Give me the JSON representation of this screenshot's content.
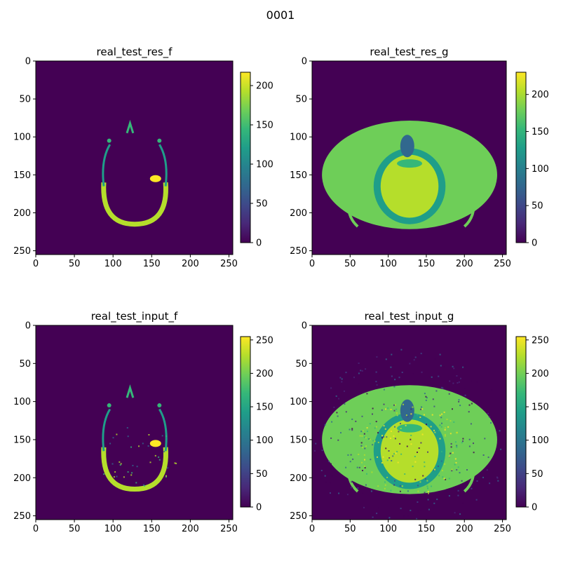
{
  "figure": {
    "title": "0001"
  },
  "colors": {
    "viridis": [
      "#440154",
      "#482878",
      "#3e4989",
      "#31688e",
      "#26828e",
      "#1f9e89",
      "#35b779",
      "#6ece58",
      "#b5de2b",
      "#fde725"
    ],
    "background": "#440154"
  },
  "chart_data": [
    {
      "type": "heatmap",
      "title": "real_test_res_f",
      "xlim": [
        0,
        255
      ],
      "ylim": [
        255,
        0
      ],
      "x_ticks": [
        0,
        50,
        100,
        150,
        200,
        250
      ],
      "y_ticks": [
        0,
        50,
        100,
        150,
        200,
        250
      ],
      "colorbar": {
        "range": [
          0,
          217
        ],
        "ticks": [
          0,
          50,
          100,
          150,
          200
        ]
      },
      "content": "bone-ring"
    },
    {
      "type": "heatmap",
      "title": "real_test_res_g",
      "xlim": [
        0,
        255
      ],
      "ylim": [
        255,
        0
      ],
      "x_ticks": [
        0,
        50,
        100,
        150,
        200,
        250
      ],
      "y_ticks": [
        0,
        50,
        100,
        150,
        200,
        250
      ],
      "colorbar": {
        "range": [
          0,
          230
        ],
        "ticks": [
          0,
          50,
          100,
          150,
          200
        ]
      },
      "content": "head-slice"
    },
    {
      "type": "heatmap",
      "title": "real_test_input_f",
      "xlim": [
        0,
        255
      ],
      "ylim": [
        255,
        0
      ],
      "x_ticks": [
        0,
        50,
        100,
        150,
        200,
        250
      ],
      "y_ticks": [
        0,
        50,
        100,
        150,
        200,
        250
      ],
      "colorbar": {
        "range": [
          0,
          255
        ],
        "ticks": [
          0,
          50,
          100,
          150,
          200,
          250
        ]
      },
      "content": "bone-ring-noisy"
    },
    {
      "type": "heatmap",
      "title": "real_test_input_g",
      "xlim": [
        0,
        255
      ],
      "ylim": [
        255,
        0
      ],
      "x_ticks": [
        0,
        50,
        100,
        150,
        200,
        250
      ],
      "y_ticks": [
        0,
        50,
        100,
        150,
        200,
        250
      ],
      "colorbar": {
        "range": [
          0,
          255
        ],
        "ticks": [
          0,
          50,
          100,
          150,
          200,
          250
        ]
      },
      "content": "head-slice-noisy"
    }
  ]
}
